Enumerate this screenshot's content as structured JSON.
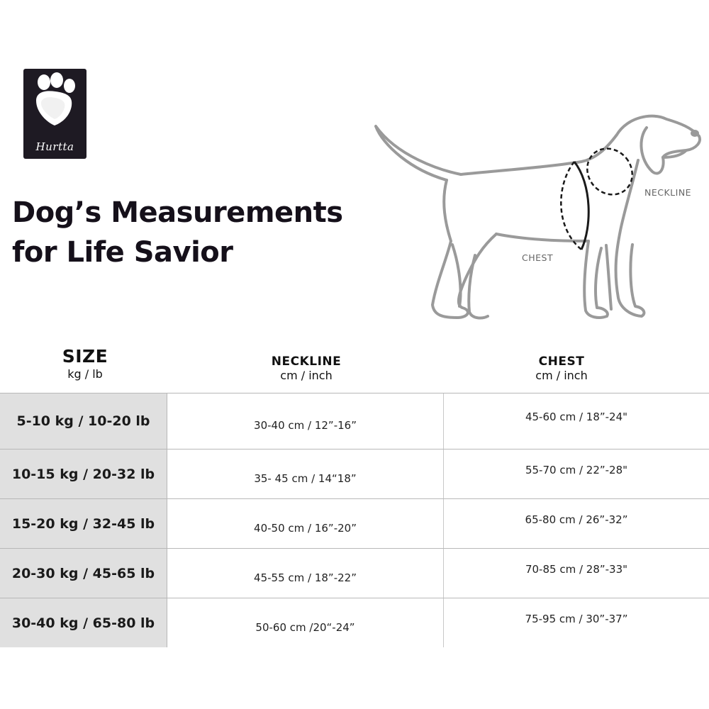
{
  "brand": {
    "name": "Hurtta",
    "logo_icon": "paw-print-icon"
  },
  "title": {
    "line1": "Dog’s Measurements",
    "line2": "for Life Savior"
  },
  "diagram": {
    "neckline_label": "NECKLINE",
    "chest_label": "CHEST"
  },
  "table": {
    "headers": {
      "size": {
        "title": "SIZE",
        "unit": "kg / lb"
      },
      "neckline": {
        "title": "NECKLINE",
        "unit": "cm / inch"
      },
      "chest": {
        "title": "CHEST",
        "unit": "cm / inch"
      }
    },
    "rows": [
      {
        "size": "5-10 kg / 10-20 lb",
        "neckline": "30-40 cm / 12”-16”",
        "chest": "45-60 cm / 18”-24\""
      },
      {
        "size": "10-15 kg / 20-32 lb",
        "neckline": "35- 45 cm / 14“18”",
        "chest": "55-70 cm / 22”-28\""
      },
      {
        "size": "15-20 kg /  32-45 lb",
        "neckline": "40-50 cm / 16”-20”",
        "chest": "65-80 cm / 26”-32”"
      },
      {
        "size": "20-30 kg / 45-65 lb",
        "neckline": "45-55 cm / 18”-22”",
        "chest": "70-85 cm / 28”-33\""
      },
      {
        "size": "30-40 kg / 65-80 lb",
        "neckline": "50-60 cm /20“-24”",
        "chest": "75-95 cm / 30”-37”"
      }
    ]
  }
}
